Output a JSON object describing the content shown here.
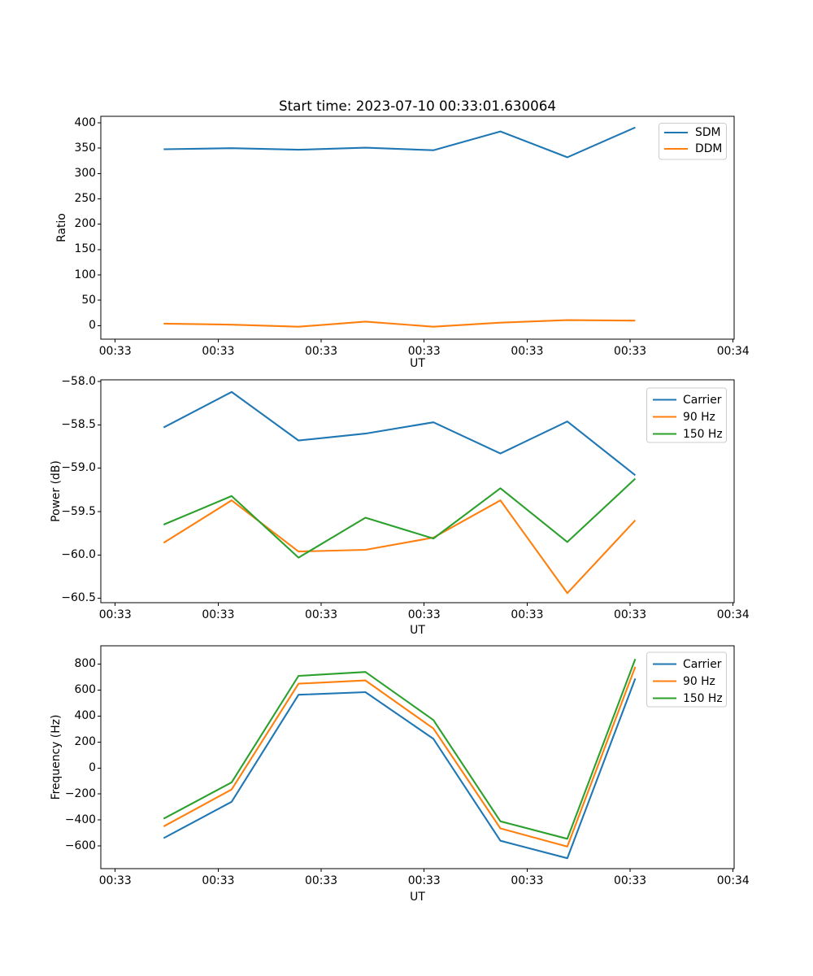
{
  "figure": {
    "suptitle": "Start time: 2023-07-10 00:33:01.630064",
    "background": "#ffffff",
    "axis_color": "#000000"
  },
  "chart_data": [
    {
      "type": "line",
      "title": "Start time: 2023-07-10 00:33:01.630064",
      "xlabel": "UT",
      "ylabel": "Ratio",
      "legend_position": "upper right",
      "grid": false,
      "x_seconds": [
        4.7,
        11.3,
        17.8,
        24.3,
        30.9,
        37.4,
        43.9,
        50.5
      ],
      "xlim_seconds": [
        -1.4,
        60.1
      ],
      "ylim": [
        -26.6,
        412.9
      ],
      "y_ticks": [
        0,
        50,
        100,
        150,
        200,
        250,
        300,
        350,
        400
      ],
      "y_tick_labels": [
        "0",
        "50",
        "100",
        "150",
        "200",
        "250",
        "300",
        "350",
        "400"
      ],
      "x_ticks_seconds": [
        0,
        10,
        20,
        30,
        40,
        50,
        60
      ],
      "x_tick_labels": [
        "00:33",
        "00:33",
        "00:33",
        "00:33",
        "00:33",
        "00:33",
        "00:34"
      ],
      "legend_entries": [
        "SDM",
        "DDM"
      ],
      "series": [
        {
          "name": "SDM",
          "color": "#1f77b4",
          "values": [
            348,
            350,
            347,
            351,
            346,
            383,
            332,
            391
          ]
        },
        {
          "name": "DDM",
          "color": "#ff7f0e",
          "values": [
            4,
            2,
            -2,
            8,
            -2,
            6,
            11,
            10
          ]
        }
      ]
    },
    {
      "type": "line",
      "title": "",
      "xlabel": "UT",
      "ylabel": "Power (dB)",
      "legend_position": "upper right",
      "grid": false,
      "x_seconds": [
        4.7,
        11.3,
        17.8,
        24.3,
        30.9,
        37.4,
        43.9,
        50.5
      ],
      "xlim_seconds": [
        -1.4,
        60.1
      ],
      "ylim": [
        -60.55,
        -57.98
      ],
      "y_ticks": [
        -58.0,
        -58.5,
        -59.0,
        -59.5,
        -60.0,
        -60.5
      ],
      "y_tick_labels": [
        "−58.0",
        "−58.5",
        "−59.0",
        "−59.5",
        "−60.0",
        "−60.5"
      ],
      "x_ticks_seconds": [
        0,
        10,
        20,
        30,
        40,
        50,
        60
      ],
      "x_tick_labels": [
        "00:33",
        "00:33",
        "00:33",
        "00:33",
        "00:33",
        "00:33",
        "00:34"
      ],
      "legend_entries": [
        "Carrier",
        "90 Hz",
        "150 Hz"
      ],
      "series": [
        {
          "name": "Carrier",
          "color": "#1f77b4",
          "values": [
            -58.53,
            -58.12,
            -58.68,
            -58.6,
            -58.47,
            -58.83,
            -58.46,
            -59.08
          ]
        },
        {
          "name": "90 Hz",
          "color": "#ff7f0e",
          "values": [
            -59.86,
            -59.37,
            -59.96,
            -59.94,
            -59.8,
            -59.37,
            -60.44,
            -59.6
          ]
        },
        {
          "name": "150 Hz",
          "color": "#2ca02c",
          "values": [
            -59.65,
            -59.32,
            -60.03,
            -59.57,
            -59.81,
            -59.23,
            -59.85,
            -59.12
          ]
        }
      ]
    },
    {
      "type": "line",
      "title": "",
      "xlabel": "UT",
      "ylabel": "Frequency (Hz)",
      "legend_position": "upper right",
      "grid": false,
      "x_seconds": [
        4.7,
        11.3,
        17.8,
        24.3,
        30.9,
        37.4,
        43.9,
        50.5
      ],
      "xlim_seconds": [
        -1.4,
        60.1
      ],
      "ylim": [
        -775,
        942
      ],
      "y_ticks": [
        800,
        600,
        400,
        200,
        0,
        -200,
        -400,
        -600
      ],
      "y_tick_labels": [
        "800",
        "600",
        "400",
        "200",
        "0",
        "−200",
        "−400",
        "−600"
      ],
      "x_ticks_seconds": [
        0,
        10,
        20,
        30,
        40,
        50,
        60
      ],
      "x_tick_labels": [
        "00:33",
        "00:33",
        "00:33",
        "00:33",
        "00:33",
        "00:33",
        "00:34"
      ],
      "legend_entries": [
        "Carrier",
        "90 Hz",
        "150 Hz"
      ],
      "series": [
        {
          "name": "Carrier",
          "color": "#1f77b4",
          "values": [
            -540,
            -260,
            565,
            585,
            225,
            -560,
            -695,
            690
          ]
        },
        {
          "name": "90 Hz",
          "color": "#ff7f0e",
          "values": [
            -450,
            -165,
            650,
            675,
            305,
            -465,
            -605,
            780
          ]
        },
        {
          "name": "150 Hz",
          "color": "#2ca02c",
          "values": [
            -390,
            -110,
            710,
            740,
            370,
            -410,
            -545,
            840
          ]
        }
      ]
    }
  ]
}
